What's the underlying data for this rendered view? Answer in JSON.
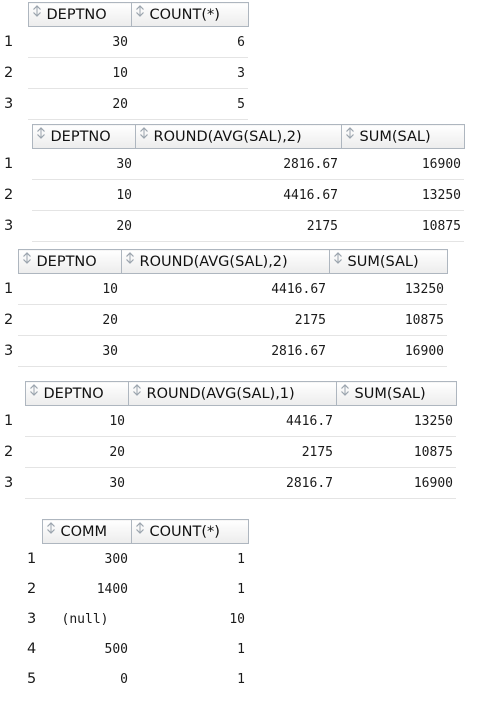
{
  "grids": [
    {
      "columns": [
        "DEPTNO",
        "COUNT(*)"
      ],
      "rows": [
        {
          "num": "1",
          "cells": [
            "30",
            "6"
          ]
        },
        {
          "num": "2",
          "cells": [
            "10",
            "3"
          ]
        },
        {
          "num": "3",
          "cells": [
            "20",
            "5"
          ]
        }
      ]
    },
    {
      "columns": [
        "DEPTNO",
        "ROUND(AVG(SAL),2)",
        "SUM(SAL)"
      ],
      "rows": [
        {
          "num": "1",
          "cells": [
            "30",
            "2816.67",
            "16900"
          ]
        },
        {
          "num": "2",
          "cells": [
            "10",
            "4416.67",
            "13250"
          ]
        },
        {
          "num": "3",
          "cells": [
            "20",
            "2175",
            "10875"
          ]
        }
      ]
    },
    {
      "columns": [
        "DEPTNO",
        "ROUND(AVG(SAL),2)",
        "SUM(SAL)"
      ],
      "rows": [
        {
          "num": "1",
          "cells": [
            "10",
            "4416.67",
            "13250"
          ]
        },
        {
          "num": "2",
          "cells": [
            "20",
            "2175",
            "10875"
          ]
        },
        {
          "num": "3",
          "cells": [
            "30",
            "2816.67",
            "16900"
          ]
        }
      ]
    },
    {
      "columns": [
        "DEPTNO",
        "ROUND(AVG(SAL),1)",
        "SUM(SAL)"
      ],
      "rows": [
        {
          "num": "1",
          "cells": [
            "10",
            "4416.7",
            "13250"
          ]
        },
        {
          "num": "2",
          "cells": [
            "20",
            "2175",
            "10875"
          ]
        },
        {
          "num": "3",
          "cells": [
            "30",
            "2816.7",
            "16900"
          ]
        }
      ]
    },
    {
      "columns": [
        "COMM",
        "COUNT(*)"
      ],
      "rows": [
        {
          "num": "1",
          "cells": [
            "300",
            "1"
          ]
        },
        {
          "num": "2",
          "cells": [
            "1400",
            "1"
          ]
        },
        {
          "num": "3",
          "cells": [
            "(null)",
            "10"
          ]
        },
        {
          "num": "4",
          "cells": [
            "500",
            "1"
          ]
        },
        {
          "num": "5",
          "cells": [
            "0",
            "1"
          ]
        }
      ]
    }
  ],
  "icons": {
    "column_header": "sort-arrows-icon"
  },
  "colors": {
    "header_border": "#aeb6bf",
    "row_divider": "#e4e4e4",
    "sort_icon": "#9aa3ad"
  }
}
